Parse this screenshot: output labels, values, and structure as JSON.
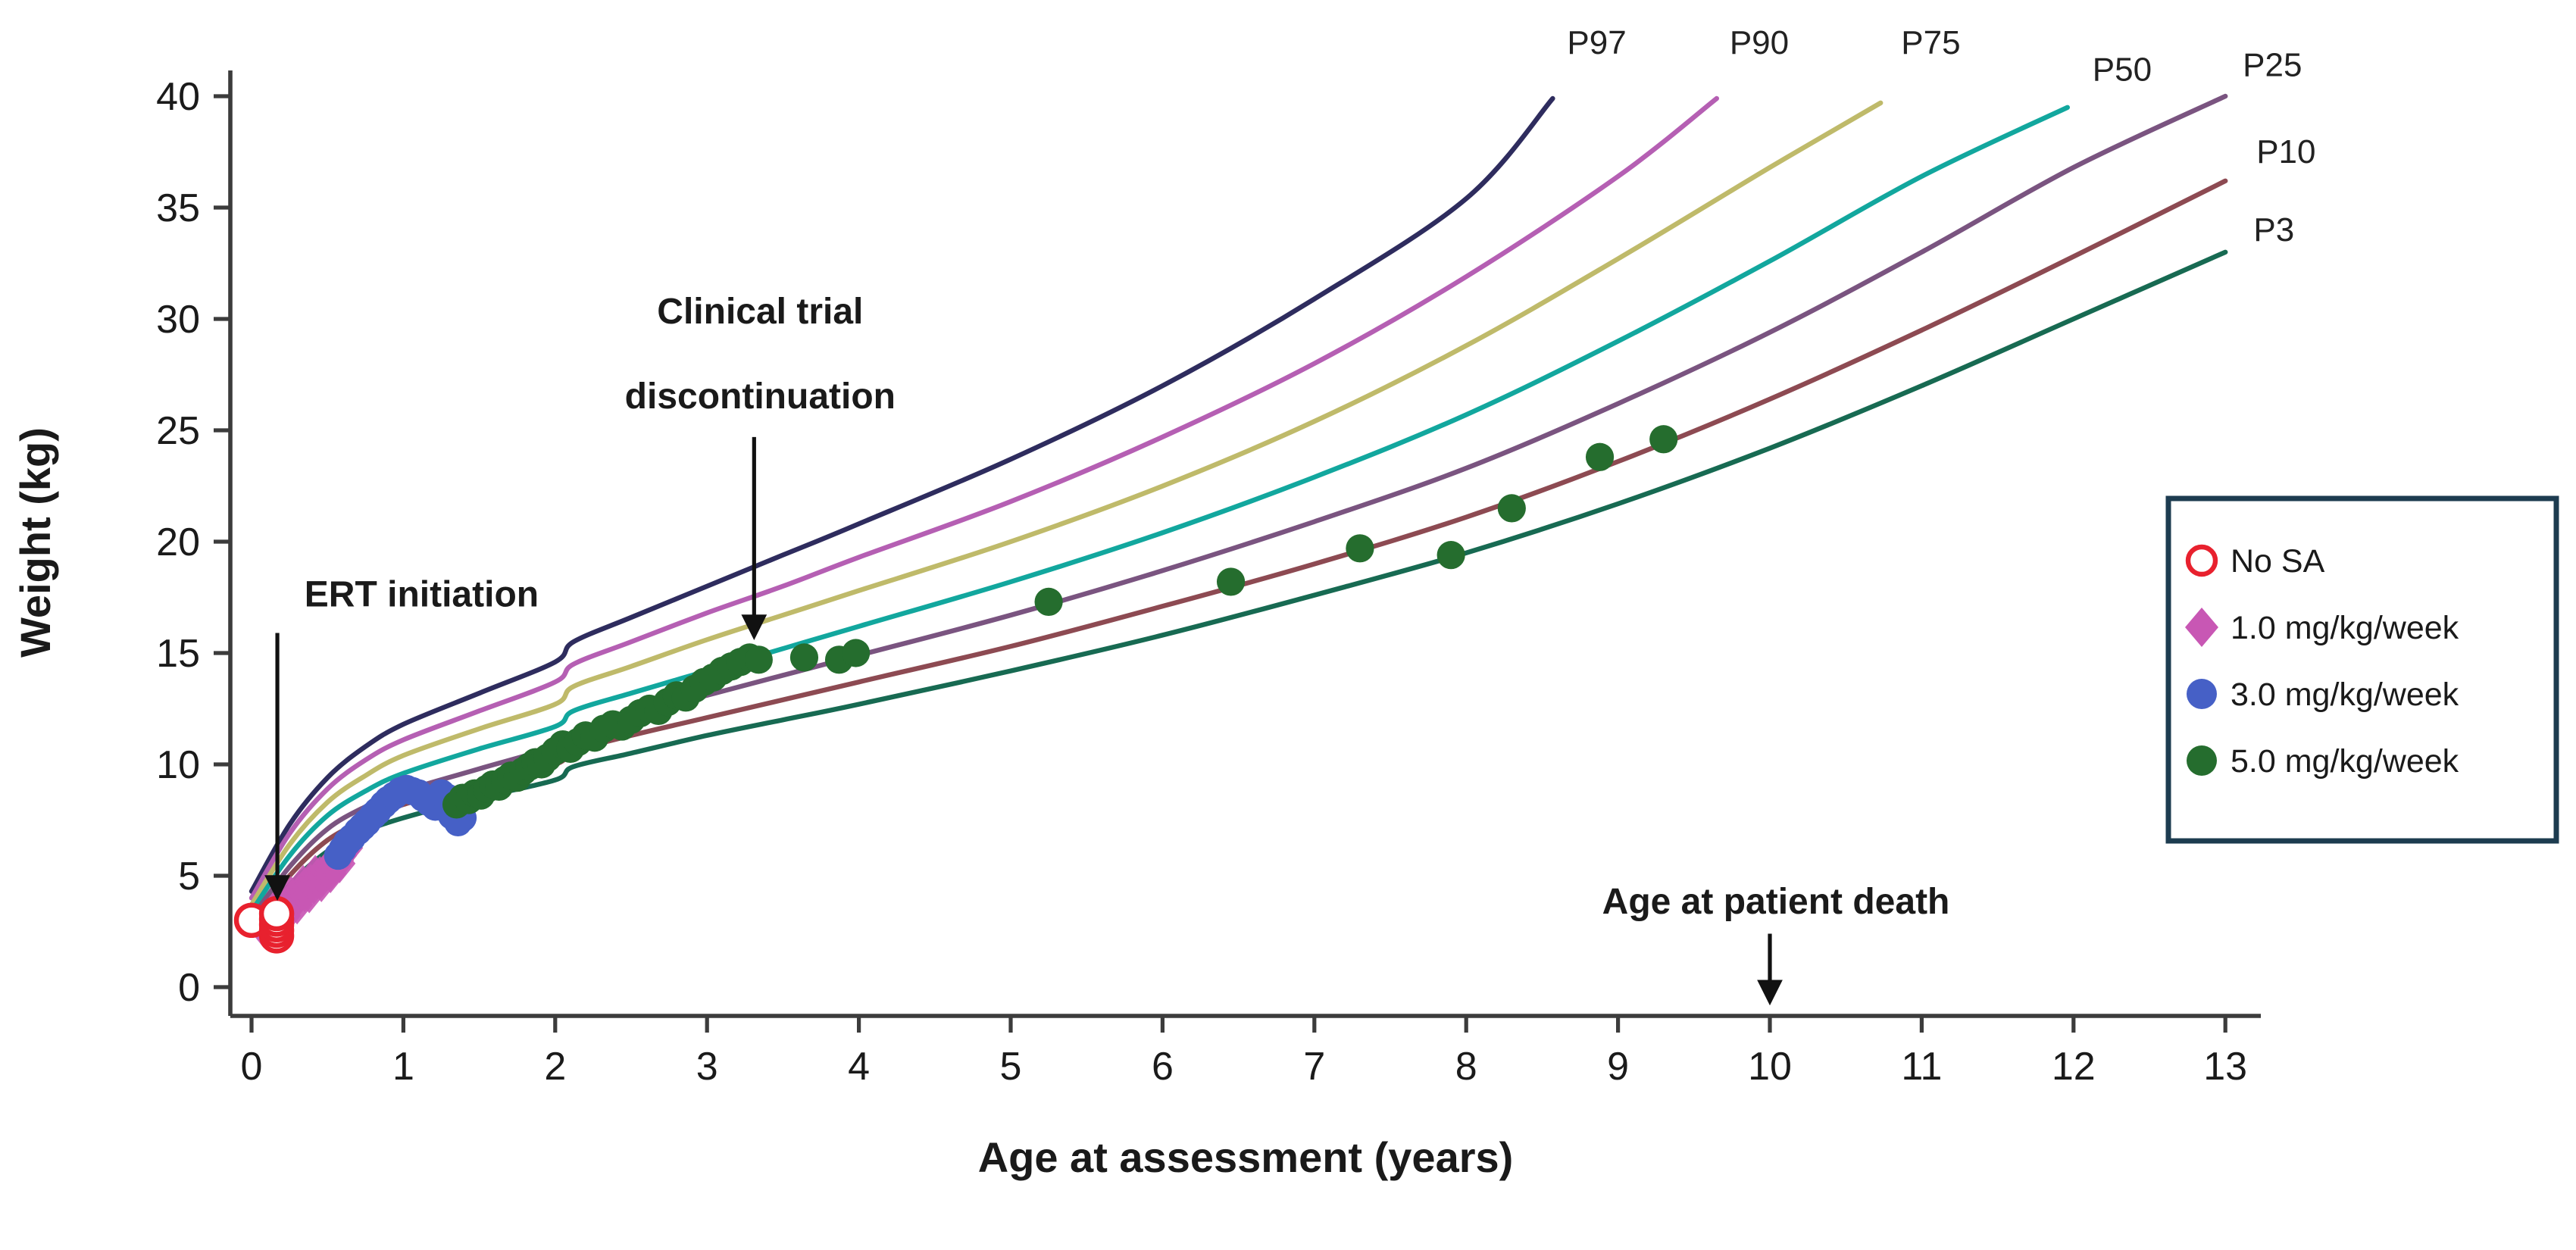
{
  "chart_data": {
    "type": "scatter",
    "title": "",
    "xlabel": "Age at assessment (years)",
    "ylabel": "Weight (kg)",
    "xlim": [
      0,
      13
    ],
    "ylim": [
      0,
      40
    ],
    "xticks": [
      0,
      1,
      2,
      3,
      4,
      5,
      6,
      7,
      8,
      9,
      10,
      11,
      12,
      13
    ],
    "yticks": [
      0,
      5,
      10,
      15,
      20,
      25,
      30,
      35,
      40
    ],
    "grid": false,
    "legend_position": "right",
    "colors": {
      "axis": "#3c3c3c",
      "annotation_arrow": "#111111",
      "legend_border": "#1d3c50",
      "legend_background": "#ffffff"
    },
    "percentile_curves": [
      {
        "name": "P97",
        "color": "#2e2c5e",
        "label_at": {
          "age": 8.86,
          "kg": 41.9
        },
        "points": [
          [
            0,
            4.3
          ],
          [
            0.25,
            7.3
          ],
          [
            0.5,
            9.4
          ],
          [
            0.75,
            10.8
          ],
          [
            1,
            11.8
          ],
          [
            1.5,
            13.2
          ],
          [
            2,
            14.6
          ],
          [
            2.12,
            15.5
          ],
          [
            2.5,
            16.6
          ],
          [
            3,
            18.0
          ],
          [
            3.5,
            19.4
          ],
          [
            4,
            20.8
          ],
          [
            5,
            23.7
          ],
          [
            6,
            27.0
          ],
          [
            7,
            30.9
          ],
          [
            8,
            35.4
          ],
          [
            8.57,
            39.9
          ]
        ]
      },
      {
        "name": "P90",
        "color": "#b55fb3",
        "label_at": {
          "age": 9.93,
          "kg": 41.9
        },
        "points": [
          [
            0,
            4.0
          ],
          [
            0.25,
            6.9
          ],
          [
            0.5,
            8.9
          ],
          [
            0.75,
            10.2
          ],
          [
            1,
            11.1
          ],
          [
            1.5,
            12.4
          ],
          [
            2,
            13.7
          ],
          [
            2.12,
            14.5
          ],
          [
            2.5,
            15.5
          ],
          [
            3,
            16.8
          ],
          [
            3.5,
            18.0
          ],
          [
            4,
            19.3
          ],
          [
            5,
            21.8
          ],
          [
            6,
            24.7
          ],
          [
            7,
            28.0
          ],
          [
            8,
            31.9
          ],
          [
            9,
            36.4
          ],
          [
            9.65,
            39.9
          ]
        ]
      },
      {
        "name": "P75",
        "color": "#bfba6a",
        "label_at": {
          "age": 11.06,
          "kg": 41.9
        },
        "points": [
          [
            0,
            3.7
          ],
          [
            0.25,
            6.4
          ],
          [
            0.5,
            8.3
          ],
          [
            0.75,
            9.5
          ],
          [
            1,
            10.4
          ],
          [
            1.5,
            11.6
          ],
          [
            2,
            12.7
          ],
          [
            2.12,
            13.5
          ],
          [
            2.5,
            14.4
          ],
          [
            3,
            15.6
          ],
          [
            3.5,
            16.7
          ],
          [
            4,
            17.8
          ],
          [
            5,
            20.0
          ],
          [
            6,
            22.5
          ],
          [
            7,
            25.4
          ],
          [
            8,
            28.8
          ],
          [
            9,
            32.7
          ],
          [
            10,
            36.8
          ],
          [
            10.73,
            39.7
          ]
        ]
      },
      {
        "name": "P50",
        "color": "#12a79e",
        "label_at": {
          "age": 12.32,
          "kg": 40.7
        },
        "points": [
          [
            0,
            3.4
          ],
          [
            0.25,
            5.9
          ],
          [
            0.5,
            7.7
          ],
          [
            0.75,
            8.8
          ],
          [
            1,
            9.6
          ],
          [
            1.5,
            10.7
          ],
          [
            2,
            11.7
          ],
          [
            2.12,
            12.4
          ],
          [
            2.5,
            13.2
          ],
          [
            3,
            14.2
          ],
          [
            3.5,
            15.2
          ],
          [
            4,
            16.2
          ],
          [
            5,
            18.2
          ],
          [
            6,
            20.4
          ],
          [
            7,
            22.9
          ],
          [
            8,
            25.7
          ],
          [
            9,
            29.0
          ],
          [
            10,
            32.6
          ],
          [
            11,
            36.4
          ],
          [
            11.96,
            39.5
          ]
        ]
      },
      {
        "name": "P25",
        "color": "#7a5480",
        "label_at": {
          "age": 13.31,
          "kg": 40.9
        },
        "points": [
          [
            0,
            3.1
          ],
          [
            0.25,
            5.4
          ],
          [
            0.5,
            7.1
          ],
          [
            0.75,
            8.1
          ],
          [
            1,
            8.8
          ],
          [
            1.5,
            9.8
          ],
          [
            2,
            10.8
          ],
          [
            2.12,
            11.4
          ],
          [
            2.5,
            12.2
          ],
          [
            3,
            13.1
          ],
          [
            3.5,
            14.0
          ],
          [
            4,
            14.9
          ],
          [
            5,
            16.7
          ],
          [
            6,
            18.7
          ],
          [
            7,
            20.9
          ],
          [
            8,
            23.3
          ],
          [
            9,
            26.2
          ],
          [
            10,
            29.4
          ],
          [
            11,
            33.0
          ],
          [
            12,
            36.8
          ],
          [
            13,
            40.0
          ]
        ]
      },
      {
        "name": "P10",
        "color": "#8d4a52",
        "label_at": {
          "age": 13.4,
          "kg": 37.0
        },
        "points": [
          [
            0,
            2.8
          ],
          [
            0.25,
            5.0
          ],
          [
            0.5,
            6.6
          ],
          [
            0.75,
            7.5
          ],
          [
            1,
            8.2
          ],
          [
            1.5,
            9.1
          ],
          [
            2,
            10.0
          ],
          [
            2.12,
            10.6
          ],
          [
            2.5,
            11.3
          ],
          [
            3,
            12.1
          ],
          [
            3.5,
            12.9
          ],
          [
            4,
            13.7
          ],
          [
            5,
            15.3
          ],
          [
            6,
            17.1
          ],
          [
            7,
            19.0
          ],
          [
            8,
            21.1
          ],
          [
            9,
            23.6
          ],
          [
            10,
            26.4
          ],
          [
            11,
            29.5
          ],
          [
            12,
            32.8
          ],
          [
            13,
            36.2
          ]
        ]
      },
      {
        "name": "P3",
        "color": "#176a52",
        "label_at": {
          "age": 13.32,
          "kg": 33.5
        },
        "points": [
          [
            0,
            2.5
          ],
          [
            0.25,
            4.6
          ],
          [
            0.5,
            6.1
          ],
          [
            0.75,
            7.0
          ],
          [
            1,
            7.6
          ],
          [
            1.5,
            8.5
          ],
          [
            2,
            9.3
          ],
          [
            2.12,
            9.9
          ],
          [
            2.5,
            10.5
          ],
          [
            3,
            11.3
          ],
          [
            3.5,
            12.0
          ],
          [
            4,
            12.7
          ],
          [
            5,
            14.2
          ],
          [
            6,
            15.8
          ],
          [
            7,
            17.6
          ],
          [
            8,
            19.5
          ],
          [
            9,
            21.7
          ],
          [
            10,
            24.2
          ],
          [
            11,
            27.0
          ],
          [
            12,
            30.0
          ],
          [
            13,
            33.0
          ]
        ]
      }
    ],
    "series": [
      {
        "name": "No SA",
        "marker": "open-circle",
        "color": "#e8212e",
        "points": [
          [
            0.0,
            3.0
          ],
          [
            0.165,
            2.3
          ],
          [
            0.165,
            2.55
          ],
          [
            0.165,
            2.8
          ],
          [
            0.165,
            3.05
          ],
          [
            0.165,
            3.3
          ]
        ]
      },
      {
        "name": "1.0 mg/kg/week",
        "marker": "diamond",
        "color": "#c857b4",
        "points": [
          [
            0.08,
            2.65
          ],
          [
            0.1,
            2.9
          ],
          [
            0.13,
            3.0
          ],
          [
            0.15,
            3.2
          ],
          [
            0.17,
            3.1
          ],
          [
            0.18,
            3.7
          ],
          [
            0.19,
            3.4
          ],
          [
            0.21,
            3.55
          ],
          [
            0.22,
            3.2
          ],
          [
            0.23,
            3.5
          ],
          [
            0.25,
            3.8
          ],
          [
            0.26,
            4.1
          ],
          [
            0.27,
            3.95
          ],
          [
            0.29,
            3.9
          ],
          [
            0.3,
            3.7
          ],
          [
            0.31,
            4.15
          ],
          [
            0.33,
            4.3
          ],
          [
            0.34,
            4.6
          ],
          [
            0.35,
            4.25
          ],
          [
            0.37,
            4.5
          ],
          [
            0.38,
            4.2
          ],
          [
            0.39,
            4.65
          ],
          [
            0.41,
            4.6
          ],
          [
            0.42,
            5.05
          ],
          [
            0.43,
            4.85
          ],
          [
            0.45,
            5.0
          ],
          [
            0.46,
            4.7
          ],
          [
            0.47,
            4.95
          ],
          [
            0.49,
            5.2
          ],
          [
            0.51,
            5.35
          ],
          [
            0.52,
            5.1
          ],
          [
            0.53,
            5.5
          ],
          [
            0.55,
            5.45
          ],
          [
            0.57,
            5.7
          ],
          [
            0.58,
            5.55
          ],
          [
            0.59,
            5.9
          ],
          [
            0.61,
            6.1
          ],
          [
            0.63,
            6.25
          ]
        ]
      },
      {
        "name": "3.0 mg/kg/week",
        "marker": "circle",
        "color": "#4660c6",
        "points": [
          [
            0.57,
            5.9
          ],
          [
            0.6,
            6.2
          ],
          [
            0.63,
            6.5
          ],
          [
            0.66,
            6.7
          ],
          [
            0.7,
            7.0
          ],
          [
            0.73,
            7.2
          ],
          [
            0.76,
            7.4
          ],
          [
            0.8,
            7.7
          ],
          [
            0.83,
            7.9
          ],
          [
            0.87,
            8.2
          ],
          [
            0.9,
            8.4
          ],
          [
            0.94,
            8.6
          ],
          [
            0.98,
            8.8
          ],
          [
            1.02,
            8.9
          ],
          [
            1.06,
            8.8
          ],
          [
            1.1,
            8.7
          ],
          [
            1.13,
            8.5
          ],
          [
            1.17,
            8.3
          ],
          [
            1.21,
            8.1
          ],
          [
            1.25,
            8.7
          ],
          [
            1.29,
            8.5
          ],
          [
            1.32,
            7.7
          ],
          [
            1.36,
            7.4
          ],
          [
            1.39,
            7.6
          ]
        ]
      },
      {
        "name": "5.0 mg/kg/week",
        "marker": "circle",
        "color": "#256d2e",
        "points": [
          [
            1.35,
            8.2
          ],
          [
            1.39,
            8.5
          ],
          [
            1.43,
            8.4
          ],
          [
            1.47,
            8.7
          ],
          [
            1.51,
            8.6
          ],
          [
            1.55,
            8.9
          ],
          [
            1.59,
            9.1
          ],
          [
            1.63,
            9.0
          ],
          [
            1.67,
            9.3
          ],
          [
            1.71,
            9.5
          ],
          [
            1.75,
            9.4
          ],
          [
            1.79,
            9.7
          ],
          [
            1.83,
            9.9
          ],
          [
            1.87,
            10.1
          ],
          [
            1.91,
            10.0
          ],
          [
            1.95,
            10.3
          ],
          [
            2.0,
            10.6
          ],
          [
            2.05,
            10.9
          ],
          [
            2.1,
            10.7
          ],
          [
            2.15,
            11.0
          ],
          [
            2.2,
            11.3
          ],
          [
            2.26,
            11.2
          ],
          [
            2.32,
            11.6
          ],
          [
            2.38,
            11.8
          ],
          [
            2.44,
            11.7
          ],
          [
            2.5,
            12.0
          ],
          [
            2.56,
            12.3
          ],
          [
            2.62,
            12.5
          ],
          [
            2.68,
            12.4
          ],
          [
            2.74,
            12.8
          ],
          [
            2.8,
            13.1
          ],
          [
            2.86,
            13.0
          ],
          [
            2.92,
            13.4
          ],
          [
            2.98,
            13.7
          ],
          [
            3.04,
            13.9
          ],
          [
            3.1,
            14.2
          ],
          [
            3.16,
            14.4
          ],
          [
            3.22,
            14.6
          ],
          [
            3.28,
            14.8
          ],
          [
            3.34,
            14.7
          ],
          [
            3.64,
            14.8
          ],
          [
            3.87,
            14.7
          ],
          [
            3.98,
            15.0
          ],
          [
            5.25,
            17.3
          ],
          [
            6.45,
            18.2
          ],
          [
            7.3,
            19.7
          ],
          [
            7.9,
            19.4
          ],
          [
            8.3,
            21.5
          ],
          [
            8.88,
            23.8
          ],
          [
            9.3,
            24.6
          ]
        ]
      }
    ],
    "annotations": [
      {
        "id": "ert-initiation",
        "lines": [
          "ERT initiation"
        ],
        "text_at": {
          "age": 1.12,
          "kg": 17.1
        },
        "arrow": {
          "from": {
            "age": 0.17,
            "kg": 15.9
          },
          "to": {
            "age": 0.17,
            "kg": 4.05
          }
        }
      },
      {
        "id": "trial-discontinuation",
        "lines": [
          "Clinical trial",
          "discontinuation"
        ],
        "text_at": {
          "age": 3.35,
          "kg": 29.8
        },
        "arrow": {
          "from": {
            "age": 3.31,
            "kg": 24.7
          },
          "to": {
            "age": 3.31,
            "kg": 15.75
          }
        }
      },
      {
        "id": "age-at-patient-death",
        "lines": [
          "Age at patient death"
        ],
        "text_at": {
          "age": 10.04,
          "kg": 3.3
        },
        "arrow": {
          "from": {
            "age": 10.0,
            "kg": 2.4
          },
          "to": {
            "age": 10.0,
            "kg": -0.65
          }
        }
      }
    ],
    "legend": {
      "items": [
        "No SA",
        "1.0 mg/kg/week",
        "3.0 mg/kg/week",
        "5.0 mg/kg/week"
      ]
    }
  }
}
